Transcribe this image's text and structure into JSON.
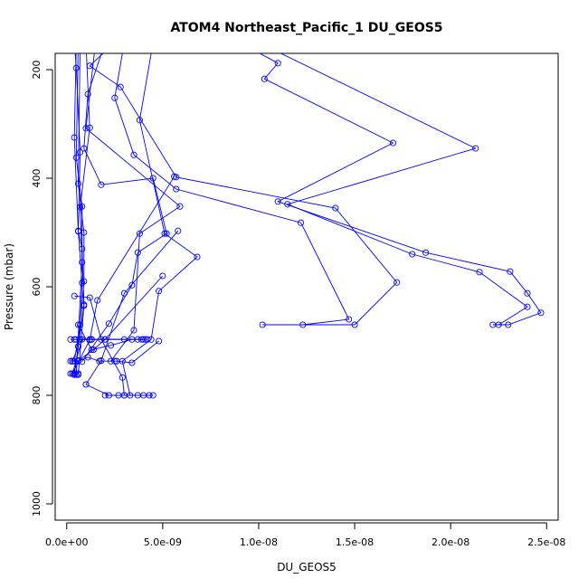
{
  "chart_data": {
    "type": "line",
    "title": "ATOM4 Northeast_Pacific_1 DU_GEOS5",
    "xlabel": "DU_GEOS5",
    "ylabel": "Pressure (mbar)",
    "xlim": [
      -6e-10,
      2.56e-08
    ],
    "ylim": [
      1030,
      170
    ],
    "y_reversed": true,
    "grid": false,
    "legend": "none",
    "series_color": "#0000ff",
    "marker": "open-circle",
    "x_ticks": [
      {
        "value": 0,
        "label": "0.0e+00"
      },
      {
        "value": 5e-09,
        "label": "5.0e-09"
      },
      {
        "value": 1e-08,
        "label": "1.0e-08"
      },
      {
        "value": 1.5e-08,
        "label": "1.5e-08"
      },
      {
        "value": 2e-08,
        "label": "2.0e-08"
      },
      {
        "value": 2.5e-08,
        "label": "2.5e-08"
      }
    ],
    "y_ticks": [
      {
        "value": 200,
        "label": "200"
      },
      {
        "value": 400,
        "label": "400"
      },
      {
        "value": 600,
        "label": "600"
      },
      {
        "value": 800,
        "label": "800"
      },
      {
        "value": 1000,
        "label": "1000"
      }
    ],
    "series": [
      {
        "x": [
          9e-09,
          1.1e-08,
          1.03e-08,
          1.7e-08,
          1.1e-08,
          1.87e-08,
          2.31e-08,
          2.4e-08,
          2.47e-08,
          2.3e-08,
          2.22e-08
        ],
        "y": [
          150,
          188,
          217,
          335,
          443,
          537,
          572,
          612,
          648,
          670,
          670
        ]
      },
      {
        "x": [
          1e-08,
          2.13e-08,
          1.15e-08,
          1.8e-08,
          2.15e-08,
          2.4e-08,
          2.25e-08
        ],
        "y": [
          150,
          345,
          448,
          540,
          573,
          637,
          670
        ]
      },
      {
        "x": [
          2.5e-09,
          1.2e-09,
          2.8e-09,
          5.7e-09,
          1.4e-08,
          1.72e-08,
          1.5e-08,
          1.02e-08
        ],
        "y": [
          150,
          193,
          232,
          398,
          455,
          592,
          670,
          670
        ]
      },
      {
        "x": [
          3e-09,
          2.5e-09,
          3.5e-09,
          5.7e-09,
          1.22e-08,
          1.47e-08,
          1.23e-08
        ],
        "y": [
          150,
          252,
          357,
          420,
          482,
          660,
          670
        ]
      },
      {
        "x": [
          4.5e-09,
          3.8e-09,
          5.1e-09,
          6.8e-09,
          4.8e-09,
          4.4e-09,
          2.9e-09,
          3.3e-09
        ],
        "y": [
          150,
          293,
          502,
          545,
          608,
          697,
          737,
          800
        ]
      },
      {
        "x": [
          2e-09,
          1.1e-09,
          9e-10,
          1.8e-09,
          4.5e-09,
          5.2e-09,
          3.7e-09,
          3.4e-09,
          2.2e-09,
          8e-10
        ],
        "y": [
          150,
          245,
          345,
          412,
          400,
          502,
          537,
          597,
          668,
          738
        ]
      },
      {
        "x": [
          1.5e-09,
          1e-09,
          5.9e-09,
          3.8e-09,
          3.5e-09,
          2.3e-09,
          2.5e-09
        ],
        "y": [
          150,
          308,
          452,
          502,
          680,
          737,
          737
        ]
      },
      {
        "x": [
          1e-09,
          1.2e-09,
          7e-10,
          9e-10,
          6e-10
        ],
        "y": [
          150,
          307,
          453,
          635,
          762
        ]
      },
      {
        "x": [
          5e-10,
          4e-10,
          6e-10,
          8e-10,
          9e-10,
          4e-10
        ],
        "y": [
          150,
          325,
          498,
          530,
          633,
          762
        ]
      },
      {
        "x": [
          6e-10,
          5e-10,
          8e-10,
          8e-10,
          5e-10
        ],
        "y": [
          150,
          362,
          452,
          555,
          762
        ]
      },
      {
        "x": [
          7e-10,
          6e-10,
          9e-10,
          9e-10,
          6e-10,
          3e-10
        ],
        "y": [
          150,
          410,
          500,
          590,
          710,
          737
        ]
      },
      {
        "x": [
          4e-10,
          5e-10,
          7e-10,
          6e-10,
          8e-10,
          7e-10,
          4e-10
        ],
        "y": [
          150,
          197,
          352,
          497,
          593,
          670,
          737
        ]
      },
      {
        "x": [
          5.6e-09,
          1.6e-09,
          1.2e-09,
          3e-10
        ],
        "y": [
          397,
          625,
          698,
          760
        ]
      },
      {
        "x": [
          5.8e-09,
          3e-09,
          1.8e-09,
          1e-09
        ],
        "y": [
          497,
          612,
          736,
          780
        ]
      },
      {
        "x": [
          5e-09,
          2e-09,
          1.4e-09,
          6e-10
        ],
        "y": [
          580,
          697,
          716,
          736
        ]
      },
      {
        "x": [
          1e-09,
          2.2e-09,
          3.7e-09,
          4.5e-09
        ],
        "y": [
          780,
          800,
          800,
          800
        ]
      },
      {
        "x": [
          2e-09,
          2.7e-09,
          3e-09,
          4e-09,
          4.3e-09
        ],
        "y": [
          800,
          800,
          800,
          800,
          800
        ]
      },
      {
        "x": [
          4e-10,
          6e-10
        ],
        "y": [
          760,
          760
        ]
      },
      {
        "x": [
          2e-10,
          1.3e-09,
          3.7e-09,
          4e-09,
          4.2e-09
        ],
        "y": [
          697,
          697,
          697,
          697,
          697
        ]
      },
      {
        "x": [
          5e-10,
          1.3e-09,
          3e-09,
          4.1e-09
        ],
        "y": [
          697,
          697,
          697,
          697
        ]
      },
      {
        "x": [
          4e-10,
          2e-09,
          3.9e-09
        ],
        "y": [
          697,
          697,
          697
        ]
      },
      {
        "x": [
          7e-10,
          1.2e-09
        ],
        "y": [
          697,
          697
        ]
      },
      {
        "x": [
          3e-10,
          6e-10,
          1.1e-09,
          1.7e-09,
          2.6e-09,
          3.4e-09,
          4.8e-09
        ],
        "y": [
          737,
          737,
          730,
          737,
          737,
          740,
          700
        ]
      },
      {
        "x": [
          2e-10,
          3e-10,
          6e-10
        ],
        "y": [
          737,
          737,
          737
        ]
      },
      {
        "x": [
          2e-10,
          4e-10
        ],
        "y": [
          760,
          760
        ]
      },
      {
        "x": [
          8e-10,
          3e-10
        ],
        "y": [
          697,
          760
        ]
      },
      {
        "x": [
          4e-10,
          1.2e-09,
          1.8e-09,
          2.9e-09,
          3e-09
        ],
        "y": [
          617,
          620,
          697,
          767,
          800
        ]
      },
      {
        "x": [
          6e-10,
          1.3e-09,
          2.3e-09,
          3.4e-09
        ],
        "y": [
          670,
          716,
          708,
          697
        ]
      }
    ]
  }
}
